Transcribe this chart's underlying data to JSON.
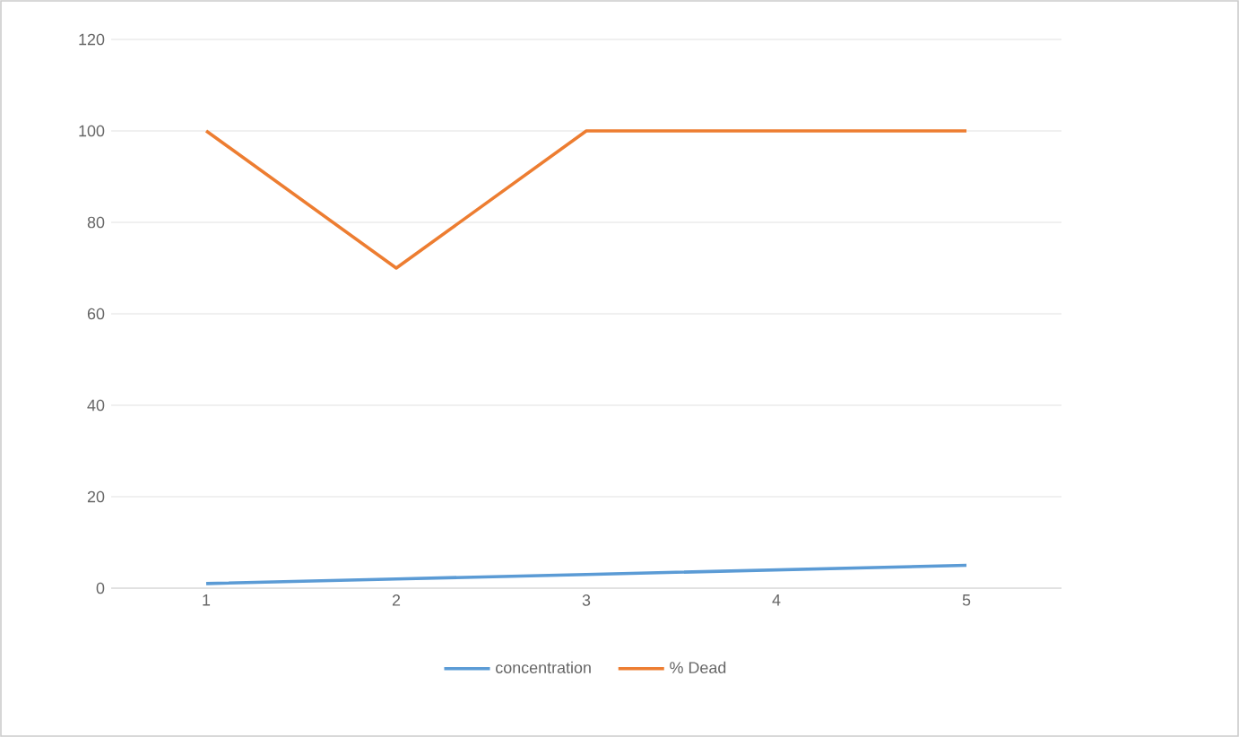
{
  "chart_data": {
    "type": "line",
    "categories": [
      "1",
      "2",
      "3",
      "4",
      "5"
    ],
    "series": [
      {
        "name": "concentration",
        "color": "#5b9bd5",
        "values": [
          1,
          2,
          3,
          4,
          5
        ]
      },
      {
        "name": "% Dead",
        "color": "#ed7d31",
        "values": [
          100,
          70,
          100,
          100,
          100
        ]
      }
    ],
    "ylim": [
      0,
      120
    ],
    "yticks": [
      0,
      20,
      40,
      60,
      80,
      100,
      120
    ],
    "grid": "y",
    "legend": "bottom",
    "marker": "none",
    "line_style": "solid"
  }
}
